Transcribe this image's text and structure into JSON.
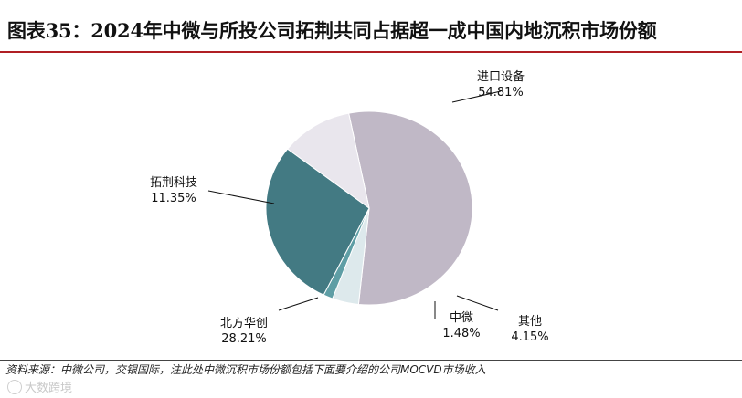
{
  "title": "图表35：2024年中微与所投公司拓荆共同占据超一成中国内地沉积市场份额",
  "chart_data": {
    "type": "pie",
    "slices": [
      {
        "name": "进口设备",
        "value": 54.81,
        "label": "54.81%",
        "color": "#c0b8c6"
      },
      {
        "name": "其他",
        "value": 4.15,
        "label": "4.15%",
        "color": "#dde9ec"
      },
      {
        "name": "中微",
        "value": 1.48,
        "label": "1.48%",
        "color": "#5e9ea5"
      },
      {
        "name": "北方华创",
        "value": 28.21,
        "label": "28.21%",
        "color": "#437a83"
      },
      {
        "name": "拓荆科技",
        "value": 11.35,
        "label": "11.35%",
        "color": "#e9e6ed"
      }
    ]
  },
  "source": "资料来源：中微公司，交银国际，注此处中微沉积市场份额包括下面要介绍的公司MOCVD市场收入",
  "watermark": "大数跨境"
}
